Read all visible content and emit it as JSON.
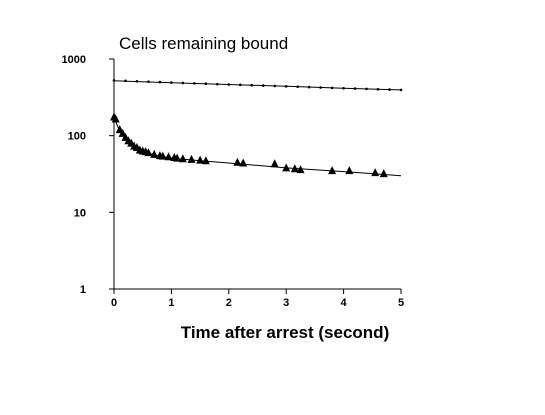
{
  "chart_data": {
    "type": "scatter",
    "title": "Cells remaining bound",
    "xlabel": "Time after arrest (second)",
    "ylabel": "",
    "y_scale": "log",
    "xlim": [
      0,
      5
    ],
    "ylim": [
      1,
      1000
    ],
    "x_ticks": [
      "0",
      "1",
      "2",
      "3",
      "4",
      "5"
    ],
    "y_ticks": [
      "1",
      "10",
      "100",
      "1000"
    ],
    "grid": false,
    "legend": "none",
    "series": [
      {
        "marker": "dot",
        "color": "#000000",
        "fit_line": {
          "x": [
            0,
            1,
            2,
            3,
            4,
            5
          ],
          "y": [
            520,
            490,
            465,
            440,
            415,
            395
          ]
        },
        "points": {
          "x": [
            0.0,
            0.2,
            0.4,
            0.6,
            0.8,
            1.0,
            1.2,
            1.4,
            1.6,
            1.8,
            2.0,
            2.2,
            2.4,
            2.6,
            2.8,
            3.0,
            3.2,
            3.4,
            3.6,
            3.8,
            4.0,
            4.2,
            4.4,
            4.6,
            4.8,
            5.0
          ],
          "y": [
            525,
            519,
            512,
            506,
            500,
            493,
            487,
            481,
            476,
            470,
            465,
            460,
            455,
            450,
            445,
            440,
            435,
            430,
            425,
            420,
            415,
            411,
            407,
            403,
            399,
            395
          ]
        }
      },
      {
        "marker": "triangle",
        "color": "#000000",
        "fit_line": {
          "x": [
            0,
            0.05,
            0.1,
            0.2,
            0.3,
            0.4,
            0.5,
            0.6,
            0.8,
            1.0,
            1.5,
            2.0,
            2.5,
            3.0,
            3.5,
            4.0,
            4.5,
            5.0
          ],
          "y": [
            175,
            140,
            115,
            95,
            80,
            70,
            63,
            59,
            54,
            51,
            47,
            44,
            41,
            38,
            36,
            34,
            32,
            30
          ]
        },
        "points": {
          "x": [
            0.0,
            0.03,
            0.1,
            0.15,
            0.2,
            0.25,
            0.3,
            0.35,
            0.4,
            0.45,
            0.5,
            0.55,
            0.6,
            0.7,
            0.8,
            0.85,
            0.95,
            1.05,
            1.1,
            1.2,
            1.35,
            1.5,
            1.6,
            2.15,
            2.25,
            2.8,
            3.0,
            3.15,
            3.25,
            3.8,
            4.1,
            4.55,
            4.7
          ],
          "y": [
            175,
            165,
            120,
            107,
            95,
            86,
            80,
            73,
            70,
            65,
            63,
            62,
            60,
            57,
            55,
            54,
            53,
            52,
            51,
            50,
            49,
            48,
            47,
            45,
            44,
            43,
            38,
            37,
            36,
            35,
            35,
            33,
            32
          ]
        }
      }
    ]
  }
}
